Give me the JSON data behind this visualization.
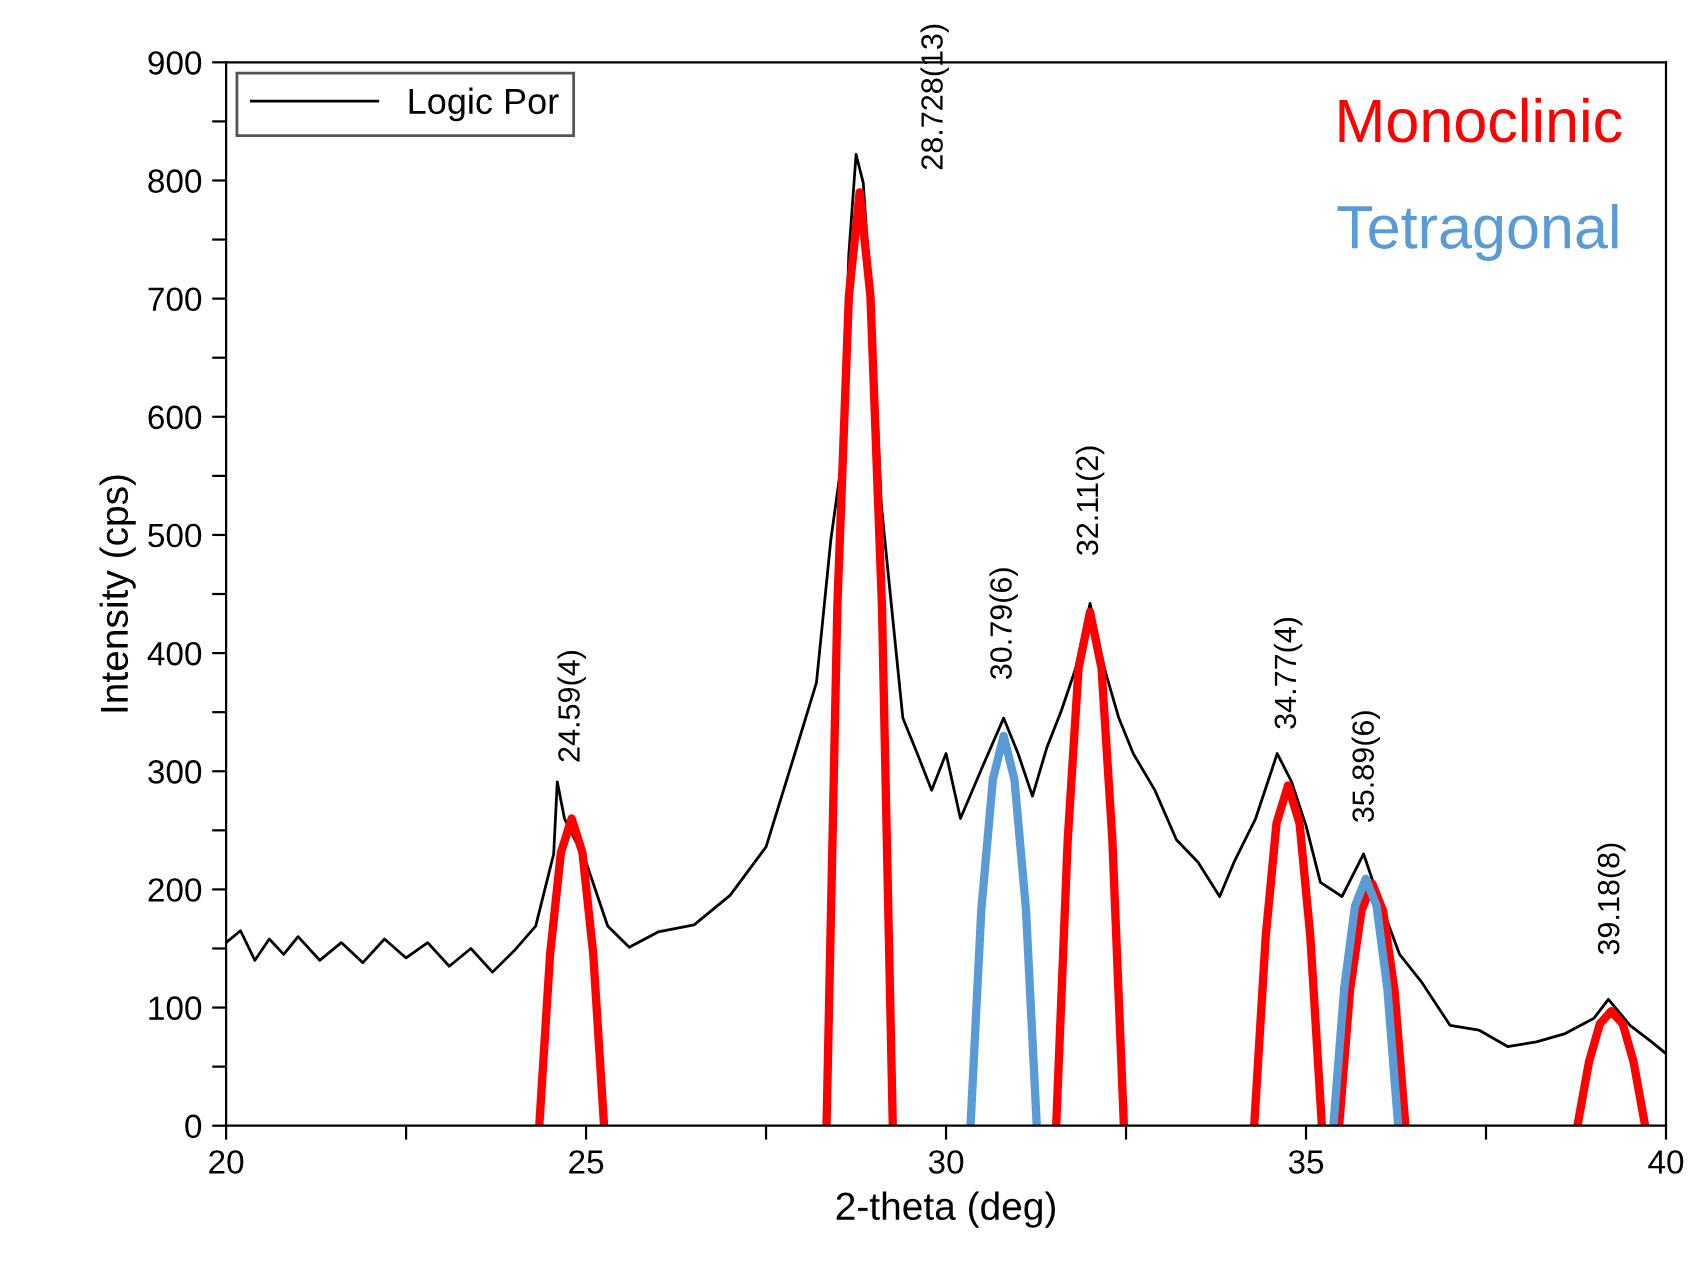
{
  "chart_data": {
    "type": "line",
    "xlabel": "2-theta (deg)",
    "ylabel": "Intensity (cps)",
    "xlim": [
      20,
      40
    ],
    "ylim": [
      0,
      900
    ],
    "xticks": [
      20,
      {
        "value": 22.5,
        "label": null
      },
      25,
      {
        "value": 27.5,
        "label": null
      },
      30,
      {
        "value": 32.5,
        "label": null
      },
      35,
      {
        "value": 37.5,
        "label": null
      },
      40
    ],
    "yticks": [
      0,
      {
        "value": 50,
        "label": null
      },
      100,
      {
        "value": 150,
        "label": null
      },
      200,
      {
        "value": 250,
        "label": null
      },
      300,
      {
        "value": 350,
        "label": null
      },
      400,
      {
        "value": 450,
        "label": null
      },
      500,
      {
        "value": 550,
        "label": null
      },
      600,
      {
        "value": 650,
        "label": null
      },
      700,
      {
        "value": 750,
        "label": null
      },
      800,
      {
        "value": 850,
        "label": null
      },
      900
    ],
    "grid": false,
    "legend": "top left",
    "series": [
      {
        "name": "Logic Por",
        "color": "#000000",
        "x": [
          20,
          20.2,
          20.4,
          20.6,
          20.8,
          21,
          21.3,
          21.6,
          21.9,
          22.2,
          22.5,
          22.8,
          23.1,
          23.4,
          23.7,
          24.0,
          24.3,
          24.55,
          24.6,
          24.7,
          25.0,
          25.3,
          25.6,
          26.0,
          26.5,
          27.0,
          27.5,
          27.9,
          28.2,
          28.4,
          28.55,
          28.65,
          28.75,
          28.85,
          29.0,
          29.1,
          29.25,
          29.4,
          29.6,
          29.8,
          30.0,
          30.2,
          30.5,
          30.8,
          31.0,
          31.2,
          31.4,
          31.6,
          31.8,
          32.0,
          32.2,
          32.4,
          32.6,
          32.9,
          33.2,
          33.5,
          33.8,
          34.0,
          34.3,
          34.6,
          34.8,
          35.0,
          35.2,
          35.5,
          35.8,
          36.0,
          36.3,
          36.6,
          37.0,
          37.4,
          37.8,
          38.2,
          38.6,
          39.0,
          39.2,
          39.5,
          39.8,
          40.0
        ],
        "values": [
          155,
          165,
          140,
          158,
          145,
          160,
          140,
          155,
          138,
          158,
          142,
          155,
          135,
          150,
          130,
          148,
          169,
          230,
          291,
          260,
          223,
          169,
          151,
          164,
          170,
          195,
          236,
          315,
          375,
          496,
          562,
          738,
          822,
          798,
          659,
          526,
          435,
          345,
          315,
          284,
          315,
          260,
          303,
          345,
          315,
          279,
          320,
          351,
          387,
          442,
          387,
          345,
          315,
          284,
          242,
          223,
          194,
          223,
          260,
          315,
          291,
          254,
          206,
          194,
          230,
          194,
          145,
          122,
          85,
          81,
          67,
          71,
          78,
          91,
          107,
          85,
          71,
          61
        ]
      },
      {
        "name": "Monoclinic",
        "color": "#ff0000",
        "x": [
          24.35,
          24.5,
          24.65,
          24.8,
          24.95,
          25.1,
          25.25,
          26.8,
          28.34,
          28.49,
          28.65,
          28.8,
          28.95,
          29.11,
          29.26,
          30.4,
          31.53,
          31.69,
          31.84,
          32.0,
          32.16,
          32.31,
          32.47,
          33.4,
          34.28,
          34.44,
          34.59,
          34.75,
          34.91,
          35.06,
          35.22,
          35.34,
          35.46,
          35.61,
          35.77,
          35.92,
          36.07,
          36.23,
          36.38,
          37.6,
          38.77,
          38.93,
          39.08,
          39.24,
          39.4,
          39.55,
          39.71
        ],
        "values": [
          0,
          145,
          231,
          260,
          231,
          145,
          0,
          null,
          0,
          439,
          702,
          790,
          702,
          439,
          0,
          null,
          0,
          242,
          387,
          435,
          387,
          242,
          0,
          null,
          0,
          160,
          256,
          288,
          256,
          160,
          0,
          null,
          0,
          114,
          182,
          205,
          182,
          114,
          0,
          null,
          0,
          54,
          86,
          97,
          86,
          54,
          0
        ]
      },
      {
        "name": "Tetragonal",
        "color": "#5b9bd5",
        "x": [
          30.34,
          30.49,
          30.65,
          30.8,
          30.95,
          31.11,
          31.26,
          33.3,
          35.38,
          35.53,
          35.68,
          35.83,
          35.98,
          36.13,
          36.28
        ],
        "values": [
          0,
          183,
          293,
          330,
          293,
          183,
          0,
          null,
          0,
          116,
          186,
          209,
          186,
          116,
          0
        ]
      }
    ],
    "annotations": [
      {
        "text": "24.59(4)",
        "x": 24.8,
        "y": 260
      },
      {
        "text": "28.728(13)",
        "x": 28.8,
        "y": 790
      },
      {
        "text": "30.79(6)",
        "x": 30.8,
        "y": 330
      },
      {
        "text": "32.11(2)",
        "x": 32.0,
        "y": 435
      },
      {
        "text": "34.77(4)",
        "x": 34.75,
        "y": 288
      },
      {
        "text": "35.89(6)",
        "x": 35.83,
        "y": 209
      },
      {
        "text": "39.18(8)",
        "x": 39.24,
        "y": 97
      }
    ]
  }
}
